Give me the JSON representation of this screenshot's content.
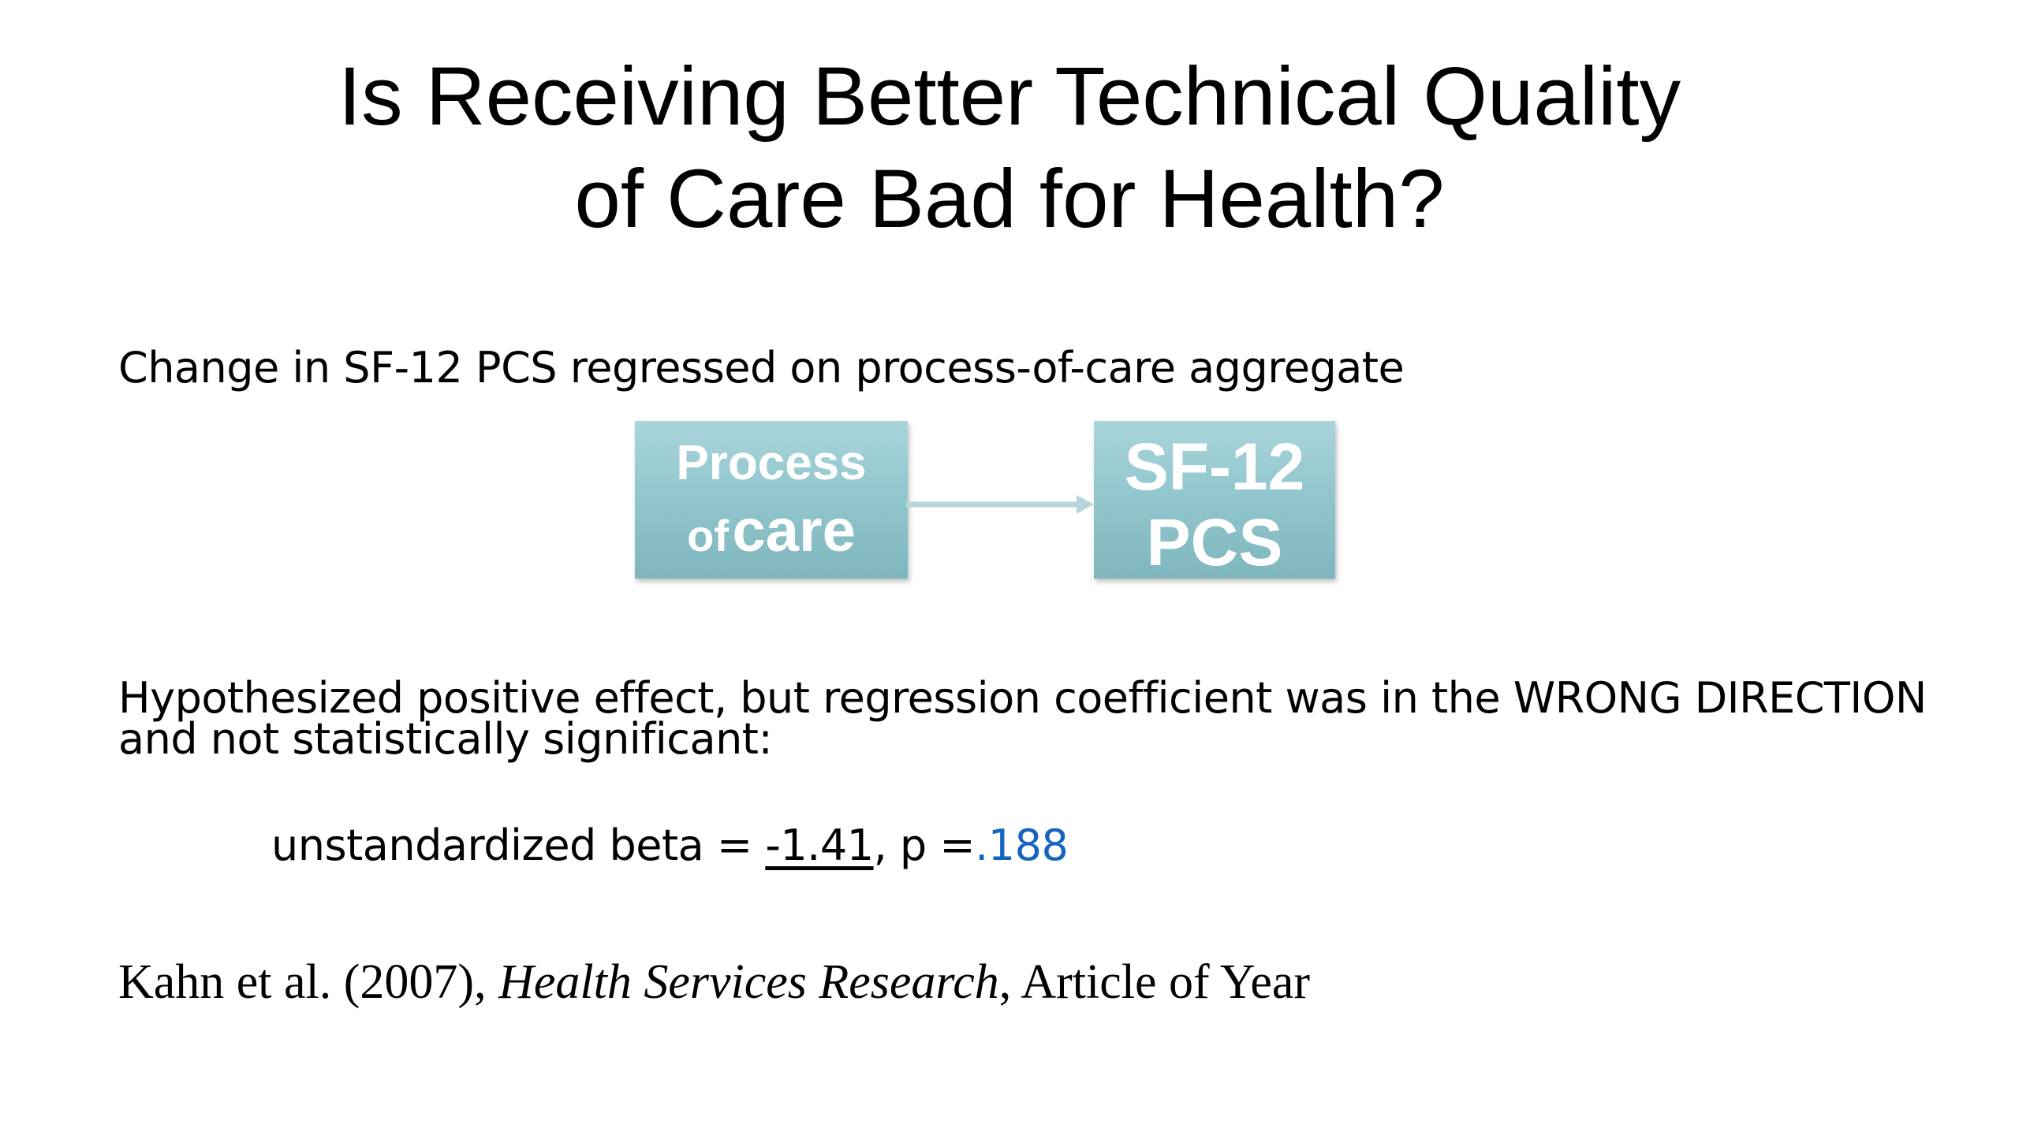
{
  "slide": {
    "title_line1": "Is Receiving Better Technical Quality",
    "title_line2": "of Care Bad for Health?",
    "subtitle": "Change in SF-12 PCS regressed on process-of-care aggregate",
    "diagram": {
      "box1_line1": "Process",
      "box1_line2_small": "of",
      "box1_line2_large": "care",
      "box2_line1": "SF-12",
      "box2_line2": "PCS",
      "box_color": "#93c7ce"
    },
    "hypothesis": "Hypothesized positive effect, but regression coefficient was in the WRONG DIRECTION and not statistically significant:",
    "stat": {
      "prefix": "unstandardized beta = ",
      "beta": "-1.41",
      "mid": ", p =",
      "p_value": ".188",
      "p_color": "#1565c0"
    },
    "citation": {
      "authors": "Kahn et al. (2007), ",
      "journal": "Health Services Research",
      "suffix": ", Article of Year"
    }
  }
}
